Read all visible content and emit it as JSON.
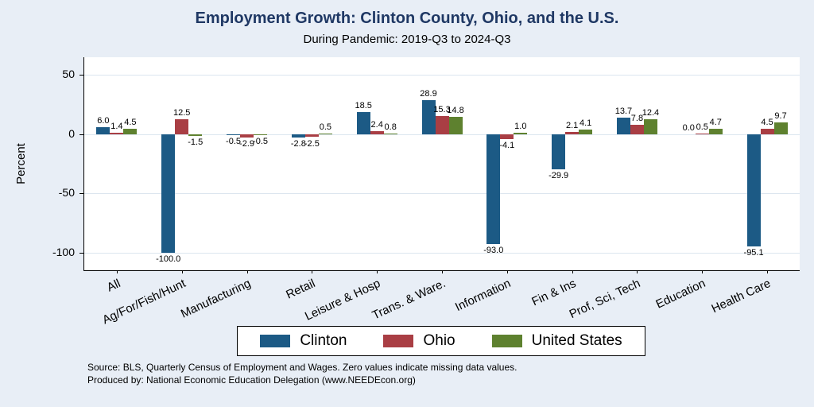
{
  "title": "Employment Growth: Clinton County, Ohio, and the U.S.",
  "subtitle": "During Pandemic: 2019-Q3 to 2024-Q3",
  "chart_data": {
    "type": "bar",
    "categories": [
      "All",
      "Ag/For/Fish/Hunt",
      "Manufacturing",
      "Retail",
      "Leisure & Hosp",
      "Trans. & Ware.",
      "Information",
      "Fin & Ins",
      "Prof, Sci, Tech",
      "Education",
      "Health Care"
    ],
    "series": [
      {
        "name": "Clinton",
        "color": "#1C5A85",
        "values": [
          6.0,
          -100.0,
          -0.5,
          -2.8,
          18.5,
          28.9,
          -93.0,
          -29.9,
          13.7,
          0.0,
          -95.1
        ]
      },
      {
        "name": "Ohio",
        "color": "#A93E44",
        "values": [
          1.4,
          12.5,
          -2.9,
          -2.5,
          2.4,
          15.3,
          -4.1,
          2.1,
          7.8,
          0.5,
          4.5
        ]
      },
      {
        "name": "United States",
        "color": "#5E812F",
        "values": [
          4.5,
          -1.5,
          -0.5,
          0.5,
          0.8,
          14.8,
          1.0,
          4.1,
          12.4,
          4.7,
          9.7
        ]
      }
    ],
    "ylabel": "Percent",
    "yticks": [
      50,
      0,
      -50,
      -100
    ],
    "ylim": [
      -115,
      65
    ],
    "grid": true,
    "legend_position": "bottom",
    "bar_label_format": "one-decimal"
  },
  "footer": {
    "source_line": "Source: BLS, Quarterly Census of Employment and Wages. Zero values indicate missing data values.",
    "produced_line": "Produced by: National Economic Education Delegation (www.NEEDEcon.org)"
  },
  "colors": {
    "background": "#E8EEF6",
    "plot_background": "#FFFFFF",
    "gridline": "#DCE6EF",
    "title_text": "#1F3864",
    "clinton": "#1C5A85",
    "ohio": "#A93E44",
    "united_states": "#5E812F"
  }
}
